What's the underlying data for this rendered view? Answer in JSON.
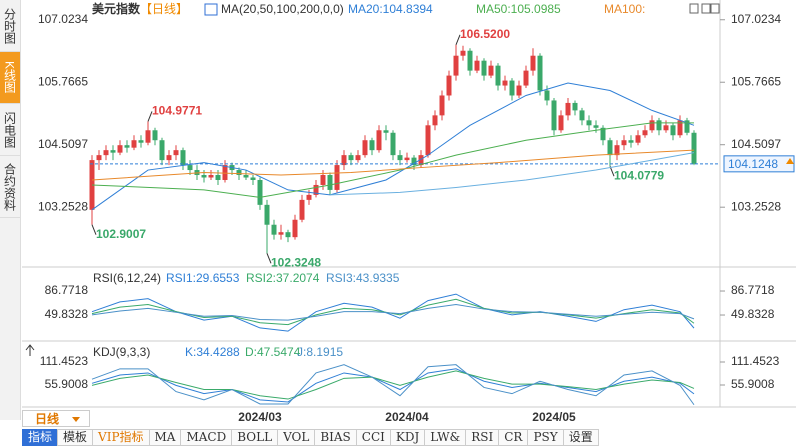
{
  "tabs": [
    "分时图",
    "K线图",
    "闪电图",
    "合约资料"
  ],
  "chart_data": [
    {
      "type": "candlestick",
      "title": "美元指数",
      "subtitle": "【日线】",
      "legend_title": "MA(20,50,100,200,0,0)",
      "up_color": "#e04040",
      "down_color": "#3aa86a",
      "ylim": [
        102.09,
        107.32
      ],
      "yticks": [
        107.0234,
        105.7665,
        104.5097,
        103.2528
      ],
      "candles": [
        [
          103.2,
          104.3,
          102.9007,
          104.2
        ],
        [
          104.2,
          104.4,
          104.0,
          104.3
        ],
        [
          104.3,
          104.5,
          104.2,
          104.4
        ],
        [
          104.4,
          104.5,
          104.2,
          104.35
        ],
        [
          104.35,
          104.6,
          104.3,
          104.5
        ],
        [
          104.5,
          104.6,
          104.35,
          104.45
        ],
        [
          104.45,
          104.7,
          104.4,
          104.6
        ],
        [
          104.6,
          104.7,
          104.45,
          104.55
        ],
        [
          104.55,
          104.9771,
          104.5,
          104.8
        ],
        [
          104.8,
          104.85,
          104.5,
          104.6
        ],
        [
          104.6,
          104.65,
          104.1,
          104.2
        ],
        [
          104.2,
          104.4,
          104.1,
          104.3
        ],
        [
          104.3,
          104.5,
          104.2,
          104.4
        ],
        [
          104.4,
          104.45,
          104.0,
          104.1
        ],
        [
          104.1,
          104.2,
          103.9,
          104.0
        ],
        [
          104.0,
          104.1,
          103.8,
          103.9
        ],
        [
          103.9,
          104.0,
          103.75,
          103.85
        ],
        [
          103.85,
          104.0,
          103.8,
          103.9
        ],
        [
          103.9,
          104.0,
          103.7,
          103.8
        ],
        [
          103.8,
          104.2,
          103.75,
          104.1
        ],
        [
          104.1,
          104.15,
          103.9,
          104.0
        ],
        [
          104.0,
          104.05,
          103.8,
          103.9
        ],
        [
          103.9,
          104.0,
          103.8,
          103.85
        ],
        [
          103.85,
          103.9,
          103.7,
          103.8
        ],
        [
          103.8,
          103.85,
          103.2,
          103.3
        ],
        [
          103.3,
          103.4,
          102.3248,
          102.9
        ],
        [
          102.9,
          103.0,
          102.6,
          102.7
        ],
        [
          102.7,
          102.9,
          102.6,
          102.75
        ],
        [
          102.75,
          102.8,
          102.55,
          102.65
        ],
        [
          102.65,
          103.1,
          102.6,
          103.0
        ],
        [
          103.0,
          103.5,
          102.95,
          103.4
        ],
        [
          103.4,
          103.6,
          103.3,
          103.5
        ],
        [
          103.5,
          103.8,
          103.45,
          103.7
        ],
        [
          103.7,
          104.0,
          103.6,
          103.9
        ],
        [
          103.9,
          103.95,
          103.5,
          103.6
        ],
        [
          103.6,
          104.2,
          103.55,
          104.1
        ],
        [
          104.1,
          104.4,
          104.0,
          104.3
        ],
        [
          104.3,
          104.35,
          104.1,
          104.2
        ],
        [
          104.2,
          104.4,
          104.15,
          104.3
        ],
        [
          104.3,
          104.7,
          104.25,
          104.6
        ],
        [
          104.6,
          104.65,
          104.3,
          104.4
        ],
        [
          104.4,
          104.9,
          104.35,
          104.8
        ],
        [
          104.8,
          104.9,
          104.6,
          104.75
        ],
        [
          104.75,
          104.8,
          104.2,
          104.3
        ],
        [
          104.3,
          104.4,
          104.1,
          104.2
        ],
        [
          104.2,
          104.35,
          104.15,
          104.25
        ],
        [
          104.25,
          104.3,
          104.0,
          104.1
        ],
        [
          104.1,
          104.4,
          104.05,
          104.3
        ],
        [
          104.3,
          105.0,
          104.25,
          104.9
        ],
        [
          104.9,
          105.2,
          104.8,
          105.1
        ],
        [
          105.1,
          105.6,
          105.0,
          105.5
        ],
        [
          105.5,
          106.0,
          105.4,
          105.9
        ],
        [
          105.9,
          106.52,
          105.8,
          106.3
        ],
        [
          106.3,
          106.5,
          106.2,
          106.4
        ],
        [
          106.4,
          106.45,
          105.9,
          106.0
        ],
        [
          106.0,
          106.3,
          105.95,
          106.2
        ],
        [
          106.2,
          106.25,
          105.8,
          105.9
        ],
        [
          105.9,
          106.2,
          105.85,
          106.1
        ],
        [
          106.1,
          106.15,
          105.6,
          105.7
        ],
        [
          105.7,
          105.9,
          105.6,
          105.8
        ],
        [
          105.8,
          105.85,
          105.4,
          105.5
        ],
        [
          105.5,
          105.8,
          105.45,
          105.7
        ],
        [
          105.7,
          106.1,
          105.65,
          106.0
        ],
        [
          106.0,
          106.45,
          105.9,
          106.3
        ],
        [
          106.3,
          106.35,
          105.5,
          105.6
        ],
        [
          105.6,
          105.7,
          105.3,
          105.4
        ],
        [
          105.4,
          105.45,
          104.7,
          104.8
        ],
        [
          104.8,
          105.2,
          104.75,
          105.1
        ],
        [
          105.1,
          105.45,
          105.0,
          105.35
        ],
        [
          105.35,
          105.4,
          105.1,
          105.2
        ],
        [
          105.2,
          105.25,
          104.9,
          105.0
        ],
        [
          105.0,
          105.1,
          104.8,
          104.9
        ],
        [
          104.9,
          105.0,
          104.75,
          104.85
        ],
        [
          104.85,
          104.9,
          104.5,
          104.6
        ],
        [
          104.6,
          104.65,
          104.0779,
          104.3
        ],
        [
          104.3,
          104.6,
          104.2,
          104.5
        ],
        [
          104.5,
          104.7,
          104.4,
          104.6
        ],
        [
          104.6,
          104.7,
          104.45,
          104.55
        ],
        [
          104.55,
          104.8,
          104.5,
          104.7
        ],
        [
          104.7,
          104.9,
          104.65,
          104.8
        ],
        [
          104.8,
          105.1,
          104.75,
          105.0
        ],
        [
          105.0,
          105.05,
          104.7,
          104.8
        ],
        [
          104.8,
          105.0,
          104.75,
          104.9
        ],
        [
          104.9,
          104.95,
          104.6,
          104.7
        ],
        [
          104.7,
          105.1,
          104.65,
          105.0
        ],
        [
          105.0,
          105.05,
          104.7,
          104.75
        ],
        [
          104.75,
          104.8,
          104.1,
          104.1248
        ]
      ],
      "series": [
        {
          "name": "MA20:104.8394",
          "color": "#2f7fd6",
          "x": [
            0,
            8,
            16,
            22,
            28,
            34,
            42,
            48,
            54,
            62,
            68,
            74,
            80,
            86
          ],
          "values": [
            103.2,
            104.0,
            104.15,
            104.0,
            103.6,
            103.5,
            103.8,
            104.3,
            104.9,
            105.5,
            105.75,
            105.6,
            105.2,
            104.9
          ]
        },
        {
          "name": "MA50:105.0985",
          "color": "#4caf50",
          "x": [
            0,
            16,
            24,
            34,
            44,
            52,
            62,
            72,
            80,
            86
          ],
          "values": [
            103.7,
            103.6,
            103.45,
            103.7,
            104.0,
            104.3,
            104.6,
            104.8,
            104.95,
            104.95
          ]
        },
        {
          "name": "MA100:",
          "color": "#e8892b",
          "x": [
            0,
            16,
            27,
            37,
            47,
            58,
            72,
            86
          ],
          "values": [
            103.8,
            103.95,
            103.9,
            103.95,
            104.05,
            104.15,
            104.3,
            104.4
          ]
        },
        {
          "color": "#6ab0e0",
          "x": [
            34,
            44,
            52,
            62,
            72,
            80,
            86
          ],
          "values": [
            103.5,
            103.55,
            103.65,
            103.8,
            104.0,
            104.2,
            104.35
          ]
        }
      ],
      "annotations": [
        {
          "index": 0,
          "value": 102.9007,
          "side": "below"
        },
        {
          "index": 8,
          "value": 104.9771,
          "side": "above"
        },
        {
          "index": 25,
          "value": 102.3248,
          "side": "below"
        },
        {
          "index": 52,
          "value": 106.52,
          "label": "106.5200",
          "side": "above"
        },
        {
          "index": 74,
          "value": 104.0779,
          "side": "below"
        }
      ],
      "last": 104.1248
    },
    {
      "type": "line",
      "title": "RSI(6,12,24)",
      "ylim": [
        16,
        114.5
      ],
      "yticks": [
        86.7718,
        49.8328
      ],
      "series": [
        {
          "name": "RSI1:29.6553",
          "color": "#2f7fd6",
          "x": [
            0,
            4,
            8,
            12,
            16,
            20,
            24,
            28,
            32,
            36,
            40,
            44,
            48,
            52,
            56,
            60,
            64,
            68,
            72,
            76,
            80,
            84,
            86
          ],
          "values": [
            55,
            70,
            75,
            55,
            42,
            48,
            30,
            25,
            55,
            68,
            62,
            45,
            72,
            82,
            60,
            50,
            55,
            48,
            40,
            58,
            65,
            55,
            29.6553
          ]
        },
        {
          "name": "RSI2:37.2074",
          "color": "#3aaa6a",
          "x": [
            0,
            4,
            8,
            12,
            16,
            20,
            24,
            28,
            32,
            36,
            40,
            44,
            48,
            52,
            56,
            60,
            64,
            68,
            72,
            76,
            80,
            84,
            86
          ],
          "values": [
            52,
            62,
            66,
            55,
            46,
            48,
            38,
            35,
            50,
            60,
            58,
            50,
            65,
            74,
            60,
            53,
            54,
            50,
            45,
            52,
            58,
            53,
            37.2074
          ]
        },
        {
          "name": "RSI3:43.9335",
          "color": "#4a90c8",
          "x": [
            0,
            4,
            8,
            12,
            16,
            20,
            24,
            28,
            32,
            36,
            40,
            44,
            48,
            52,
            56,
            60,
            64,
            68,
            72,
            76,
            80,
            84,
            86
          ],
          "values": [
            50,
            56,
            60,
            54,
            48,
            49,
            43,
            42,
            48,
            55,
            55,
            52,
            60,
            66,
            59,
            55,
            54,
            51,
            48,
            51,
            54,
            52,
            43.9335
          ]
        }
      ]
    },
    {
      "type": "line",
      "title": "KDJ(9,3,3)",
      "ylim": [
        7.6,
        147.7
      ],
      "yticks": [
        111.4523,
        55.9008
      ],
      "series": [
        {
          "name": "K:34.4288",
          "color": "#2f7fd6",
          "x": [
            0,
            4,
            8,
            12,
            16,
            20,
            24,
            28,
            32,
            36,
            40,
            44,
            48,
            52,
            56,
            60,
            64,
            68,
            72,
            76,
            80,
            84,
            86
          ],
          "values": [
            60,
            80,
            85,
            55,
            35,
            45,
            20,
            15,
            60,
            85,
            75,
            45,
            85,
            95,
            65,
            50,
            60,
            50,
            40,
            65,
            75,
            60,
            34.4288
          ]
        },
        {
          "name": "D:47.5474",
          "color": "#3aaa6a",
          "x": [
            0,
            4,
            8,
            12,
            16,
            20,
            24,
            28,
            32,
            36,
            40,
            44,
            48,
            52,
            56,
            60,
            64,
            68,
            72,
            76,
            80,
            84,
            86
          ],
          "values": [
            55,
            72,
            80,
            62,
            45,
            45,
            30,
            22,
            45,
            72,
            75,
            55,
            75,
            90,
            72,
            58,
            58,
            52,
            45,
            58,
            68,
            62,
            47.5474
          ]
        },
        {
          "name": "J:8.1915",
          "color": "#4a90c8",
          "x": [
            0,
            4,
            8,
            12,
            16,
            20,
            24,
            28,
            32,
            36,
            40,
            44,
            48,
            52,
            56,
            60,
            64,
            68,
            72,
            76,
            80,
            84,
            86
          ],
          "values": [
            70,
            95,
            95,
            40,
            20,
            45,
            10,
            10,
            85,
            105,
            75,
            30,
            100,
            105,
            50,
            35,
            65,
            45,
            30,
            80,
            90,
            55,
            8.1915
          ]
        }
      ]
    }
  ],
  "xaxis": [
    {
      "index": 24,
      "label": "2024/03"
    },
    {
      "index": 45,
      "label": "2024/04"
    },
    {
      "index": 66,
      "label": "2024/05"
    }
  ],
  "period": "日线",
  "toolbar": [
    "指标",
    "模板",
    "VIP指标",
    "MA",
    "MACD",
    "BOLL",
    "VOL",
    "BIAS",
    "CCI",
    "KDJ",
    "LW&",
    "RSI",
    "CR",
    "PSY",
    "设置"
  ]
}
